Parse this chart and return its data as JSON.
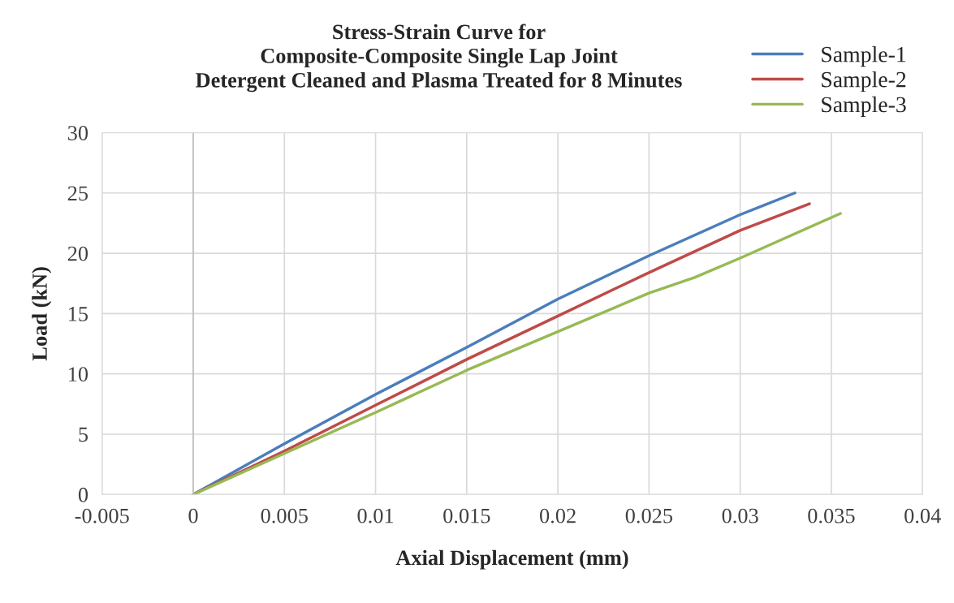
{
  "chart_data": {
    "type": "line",
    "title": "Stress-Strain Curve for\nComposite-Composite Single Lap Joint\nDetergent Cleaned and Plasma Treated for 8 Minutes",
    "xlabel": "Axial Displacement (mm)",
    "ylabel": "Load (kN)",
    "series": [
      {
        "name": "Sample-1",
        "color": "#4a7ebb",
        "x": [
          0,
          0.005,
          0.01,
          0.015,
          0.02,
          0.025,
          0.03,
          0.033
        ],
        "values": [
          0,
          4.2,
          8.3,
          12.2,
          16.2,
          19.8,
          23.2,
          25.0
        ]
      },
      {
        "name": "Sample-2",
        "color": "#be4b48",
        "x": [
          0,
          0.005,
          0.01,
          0.015,
          0.02,
          0.025,
          0.03,
          0.0338
        ],
        "values": [
          0,
          3.6,
          7.4,
          11.2,
          14.8,
          18.4,
          21.9,
          24.1
        ]
      },
      {
        "name": "Sample-3",
        "color": "#98b954",
        "x": [
          0,
          0.005,
          0.01,
          0.015,
          0.02,
          0.025,
          0.0275,
          0.03,
          0.0355
        ],
        "values": [
          0,
          3.4,
          6.8,
          10.3,
          13.5,
          16.7,
          18.0,
          19.6,
          23.3
        ]
      }
    ],
    "xlim": [
      -0.005,
      0.04
    ],
    "xticks": [
      -0.005,
      0,
      0.005,
      0.01,
      0.015,
      0.02,
      0.025,
      0.03,
      0.035,
      0.04
    ],
    "ylim": [
      0,
      30
    ],
    "yticks": [
      0,
      5,
      10,
      15,
      20,
      25,
      30
    ],
    "grid": true,
    "legend": "top right",
    "marker": "none",
    "line_style": "solid"
  }
}
